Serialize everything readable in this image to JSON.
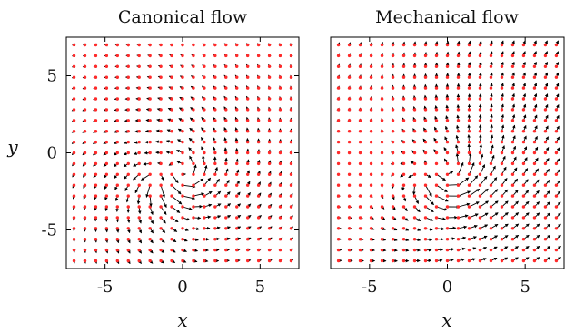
{
  "chart_data": [
    {
      "type": "vector_field",
      "title": "Canonical flow",
      "xlabel": "x",
      "ylabel": "y",
      "xlim": [
        -7.5,
        7.5
      ],
      "ylim": [
        -7.5,
        7.5
      ],
      "xticks": [
        -5,
        0,
        5
      ],
      "yticks": [
        -5,
        0,
        5
      ],
      "grid": {
        "start": -7,
        "stop": 7,
        "step": 0.7
      },
      "field": {
        "kind": "canonical",
        "source_point": [
          -1.5,
          -1.5
        ],
        "vortex_center": [
          0,
          -1.5
        ]
      },
      "point_color": "#ff2a2a",
      "arrow_color": "#000000"
    },
    {
      "type": "vector_field",
      "title": "Mechanical flow",
      "xlabel": "x",
      "ylabel": "",
      "xlim": [
        -7.5,
        7.5
      ],
      "ylim": [
        -7.5,
        7.5
      ],
      "xticks": [
        -5,
        0,
        5
      ],
      "yticks": [],
      "grid": {
        "start": -7,
        "stop": 7,
        "step": 0.7
      },
      "field": {
        "kind": "mechanical",
        "source_point": [
          -1.5,
          -1.5
        ],
        "vortex_center": [
          0,
          -1.5
        ],
        "background_flow": [
          1,
          1
        ]
      },
      "point_color": "#ff2a2a",
      "arrow_color": "#000000"
    }
  ]
}
